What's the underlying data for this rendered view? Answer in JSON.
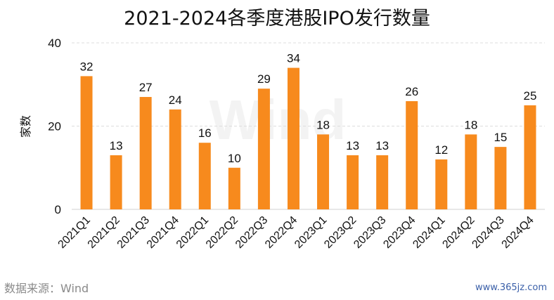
{
  "chart_data": {
    "type": "bar",
    "title": "2021-2024各季度港股IPO发行数量",
    "ylabel": "家数",
    "xlabel": "",
    "ylim": [
      0,
      40
    ],
    "yticks": [
      0,
      20,
      40
    ],
    "grid": true,
    "legend": "none",
    "categories": [
      "2021Q1",
      "2021Q2",
      "2021Q3",
      "2021Q4",
      "2022Q1",
      "2022Q2",
      "2022Q3",
      "2022Q4",
      "2023Q1",
      "2023Q2",
      "2023Q3",
      "2023Q4",
      "2024Q1",
      "2024Q2",
      "2024Q3",
      "2024Q4"
    ],
    "values": [
      32,
      13,
      27,
      24,
      16,
      10,
      29,
      34,
      18,
      13,
      13,
      26,
      12,
      18,
      15,
      25
    ],
    "bar_color": "#F78A1D"
  },
  "watermark": "Wind",
  "source": "数据来源：Wind",
  "site": "www.365jz.com"
}
